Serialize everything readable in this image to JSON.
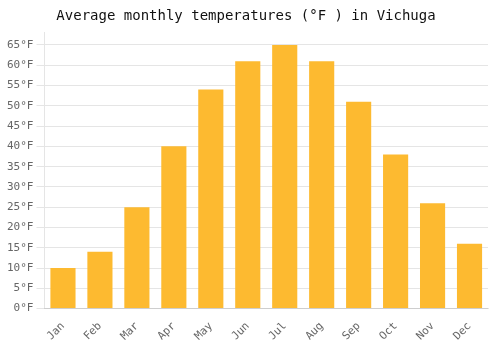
{
  "chart_data": {
    "type": "bar",
    "title": "Average monthly temperatures (°F ) in Vichuga",
    "categories": [
      "Jan",
      "Feb",
      "Mar",
      "Apr",
      "May",
      "Jun",
      "Jul",
      "Aug",
      "Sep",
      "Oct",
      "Nov",
      "Dec"
    ],
    "values": [
      10,
      14,
      25,
      40,
      54,
      61,
      65,
      61,
      51,
      38,
      26,
      16
    ],
    "color": "#FDBA30",
    "ylim": [
      0,
      68
    ],
    "yticks": [
      {
        "value": 0,
        "label": "0°F"
      },
      {
        "value": 5,
        "label": "5°F"
      },
      {
        "value": 10,
        "label": "10°F"
      },
      {
        "value": 15,
        "label": "15°F"
      },
      {
        "value": 20,
        "label": "20°F"
      },
      {
        "value": 25,
        "label": "25°F"
      },
      {
        "value": 30,
        "label": "30°F"
      },
      {
        "value": 35,
        "label": "35°F"
      },
      {
        "value": 40,
        "label": "40°F"
      },
      {
        "value": 45,
        "label": "45°F"
      },
      {
        "value": 50,
        "label": "50°F"
      },
      {
        "value": 55,
        "label": "55°F"
      },
      {
        "value": 60,
        "label": "60°F"
      },
      {
        "value": 65,
        "label": "65°F"
      }
    ],
    "grid": true
  }
}
